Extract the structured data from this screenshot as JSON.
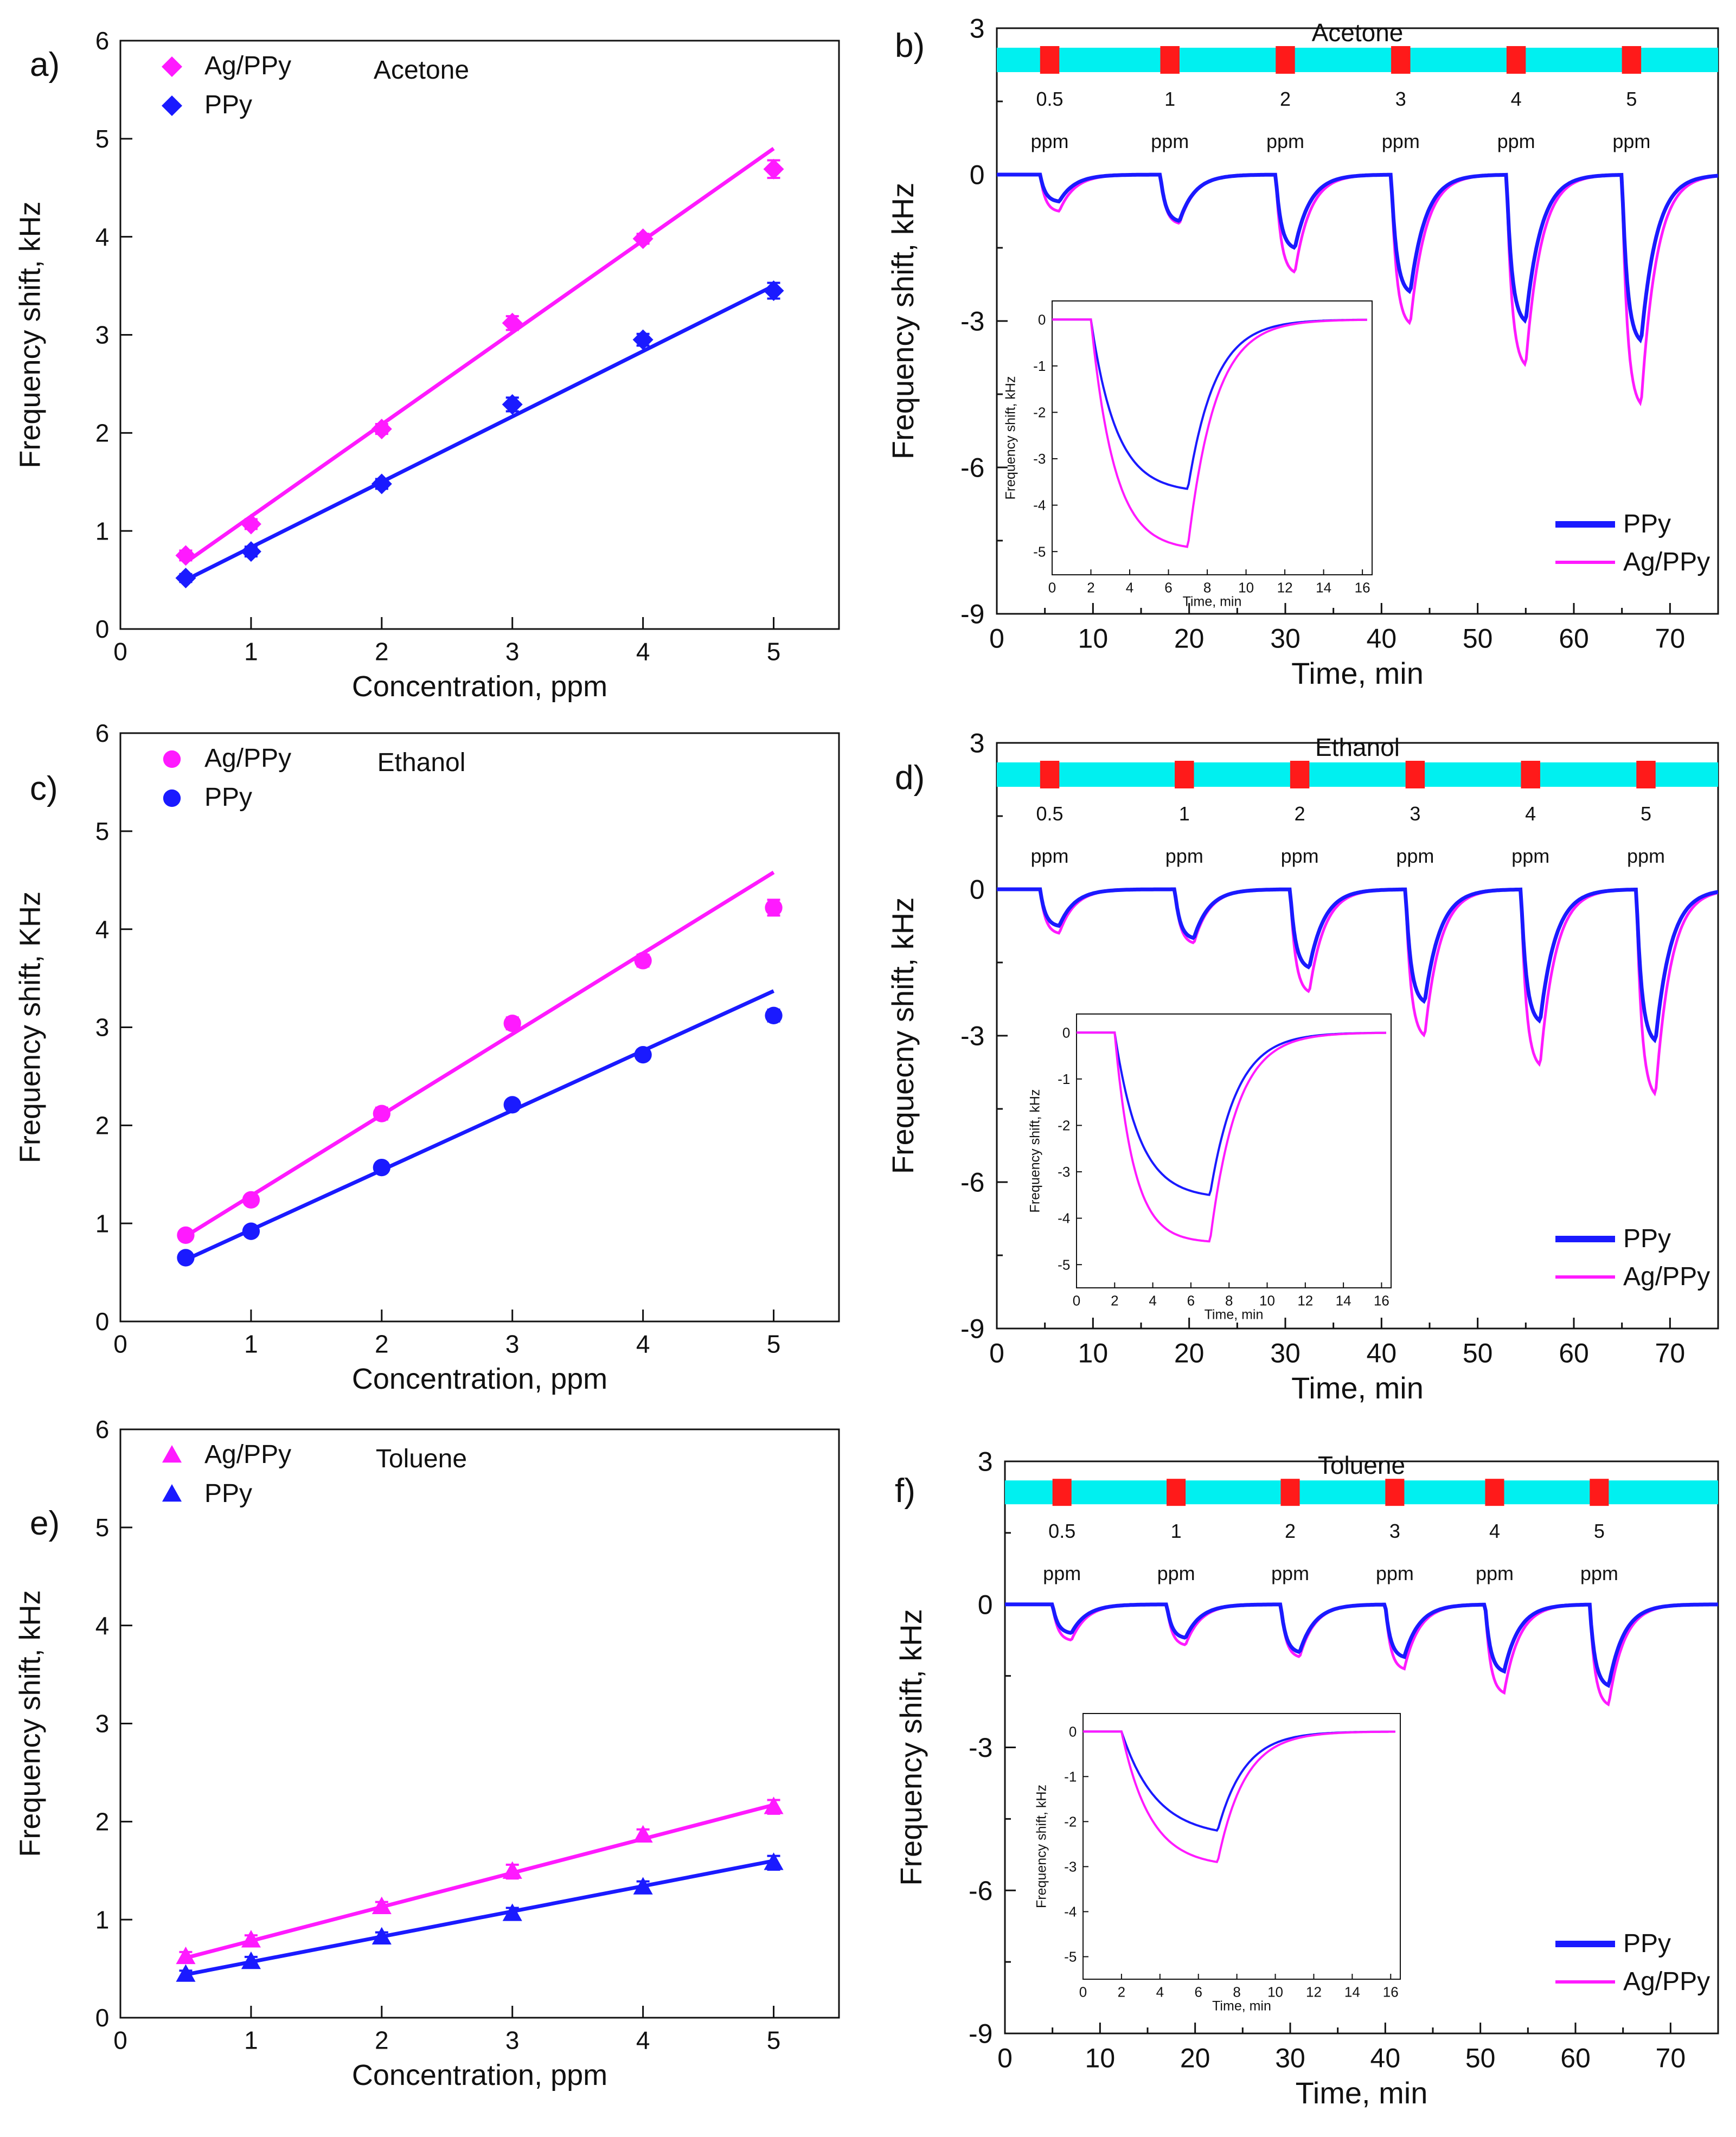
{
  "colors": {
    "agppy": "#ff1aff",
    "ppy": "#1a1aff",
    "bar": "#00f0f0",
    "pulse": "#ff1a1a",
    "axis": "#111111"
  },
  "chart_data": [
    {
      "panel": "a)",
      "type": "scatter",
      "title": "Acetone",
      "xlabel": "Concentration, ppm",
      "ylabel": "Frequency shift, kHz",
      "xlim": [
        0,
        5.5
      ],
      "ylim": [
        0,
        6
      ],
      "xticks": [
        0,
        1,
        2,
        3,
        4,
        5
      ],
      "yticks": [
        0,
        1,
        2,
        3,
        4,
        5,
        6
      ],
      "legend": "top-left",
      "marker": "diamond",
      "series": [
        {
          "name": "Ag/PPy",
          "color": "agppy",
          "x": [
            0.5,
            1,
            2,
            3,
            4,
            5
          ],
          "y": [
            0.75,
            1.07,
            2.04,
            3.12,
            3.98,
            4.69
          ],
          "err": [
            0.05,
            0.05,
            0.05,
            0.07,
            0.05,
            0.09
          ],
          "fit": [
            [
              0.5,
              0.68
            ],
            [
              5,
              4.9
            ]
          ]
        },
        {
          "name": "PPy",
          "color": "ppy",
          "x": [
            0.5,
            1,
            2,
            3,
            4,
            5
          ],
          "y": [
            0.52,
            0.79,
            1.48,
            2.29,
            2.95,
            3.45
          ],
          "err": [
            0.04,
            0.05,
            0.05,
            0.07,
            0.06,
            0.08
          ],
          "fit": [
            [
              0.5,
              0.5
            ],
            [
              5,
              3.5
            ]
          ]
        }
      ]
    },
    {
      "panel": "b)",
      "type": "line",
      "title": "Acetone",
      "xlabel": "Time, min",
      "ylabel": "Frequency shift, kHz",
      "xlim": [
        0,
        75
      ],
      "ylim": [
        -9,
        3
      ],
      "xticks": [
        0,
        10,
        20,
        30,
        40,
        50,
        60,
        70
      ],
      "yticks": [
        -9,
        -6,
        -3,
        0,
        3
      ],
      "legend": "bottom-right",
      "exposure_labels": [
        "0.5",
        "1",
        "2",
        "3",
        "4",
        "5"
      ],
      "exposure_unit": "ppm",
      "pulse_starts": [
        4.5,
        17,
        29,
        41,
        53,
        65
      ],
      "pulse_width": 2,
      "series": [
        {
          "name": "PPy",
          "color": "ppy",
          "depths": [
            0.55,
            0.95,
            1.5,
            2.4,
            3,
            3.4
          ]
        },
        {
          "name": "Ag/PPy",
          "color": "agppy",
          "depths": [
            0.75,
            1,
            2,
            3.05,
            3.9,
            4.7
          ]
        }
      ],
      "inset": {
        "xlabel": "Time, min",
        "ylabel": "Frequency shift, kHz",
        "xlim": [
          0,
          16.5
        ],
        "ylim": [
          -5.5,
          0.4
        ],
        "xticks": [
          0,
          2,
          4,
          6,
          8,
          10,
          12,
          14,
          16
        ],
        "yticks": [
          0,
          -1,
          -2,
          -3,
          -4,
          -5
        ],
        "series": [
          {
            "name": "PPy",
            "color": "ppy",
            "amp": 3.65,
            "tau": 1.3
          },
          {
            "name": "Ag/PPy",
            "color": "agppy",
            "amp": 4.9,
            "tau": 1.2
          }
        ]
      }
    },
    {
      "panel": "c)",
      "type": "scatter",
      "title": "Ethanol",
      "xlabel": "Concentration, ppm",
      "ylabel": "Frequency shift, KHz",
      "xlim": [
        0,
        5.5
      ],
      "ylim": [
        0,
        6
      ],
      "xticks": [
        0,
        1,
        2,
        3,
        4,
        5
      ],
      "yticks": [
        0,
        1,
        2,
        3,
        4,
        5,
        6
      ],
      "legend": "top-left",
      "marker": "circle",
      "series": [
        {
          "name": "Ag/PPy",
          "color": "agppy",
          "x": [
            0.5,
            1,
            2,
            3,
            4,
            5
          ],
          "y": [
            0.88,
            1.24,
            2.12,
            3.04,
            3.68,
            4.22
          ],
          "err": [
            0.04,
            0.05,
            0.06,
            0.06,
            0.06,
            0.08
          ],
          "fit": [
            [
              0.5,
              0.87
            ],
            [
              5,
              4.58
            ]
          ]
        },
        {
          "name": "PPy",
          "color": "ppy",
          "x": [
            0.5,
            1,
            2,
            3,
            4,
            5
          ],
          "y": [
            0.65,
            0.92,
            1.57,
            2.21,
            2.72,
            3.12
          ],
          "err": [
            0.04,
            0.05,
            0.05,
            0.05,
            0.05,
            0.06
          ],
          "fit": [
            [
              0.5,
              0.63
            ],
            [
              5,
              3.37
            ]
          ]
        }
      ]
    },
    {
      "panel": "d)",
      "type": "line",
      "title": "Ethanol",
      "xlabel": "Time, min",
      "ylabel": "Frequecny shift, kHz",
      "xlim": [
        0,
        75
      ],
      "ylim": [
        -9,
        3
      ],
      "xticks": [
        0,
        10,
        20,
        30,
        40,
        50,
        60,
        70
      ],
      "yticks": [
        -9,
        -6,
        -3,
        0,
        3
      ],
      "legend": "bottom-right",
      "exposure_labels": [
        "0.5",
        "1",
        "2",
        "3",
        "4",
        "5"
      ],
      "exposure_unit": "ppm",
      "pulse_starts": [
        4.5,
        18.5,
        30.5,
        42.5,
        54.5,
        66.5
      ],
      "pulse_width": 2,
      "series": [
        {
          "name": "PPy",
          "color": "ppy",
          "depths": [
            0.75,
            1,
            1.6,
            2.3,
            2.7,
            3.1
          ]
        },
        {
          "name": "Ag/PPy",
          "color": "agppy",
          "depths": [
            0.9,
            1.1,
            2.1,
            3,
            3.6,
            4.2
          ]
        }
      ],
      "inset": {
        "xlabel": "Time, min",
        "ylabel": "Frequency shift, kHz",
        "xlim": [
          0,
          16.5
        ],
        "ylim": [
          -5.5,
          0.4
        ],
        "xticks": [
          0,
          2,
          4,
          6,
          8,
          10,
          12,
          14,
          16
        ],
        "yticks": [
          0,
          -1,
          -2,
          -3,
          -4,
          -5
        ],
        "series": [
          {
            "name": "PPy",
            "color": "ppy",
            "amp": 3.5,
            "tau": 1.3
          },
          {
            "name": "Ag/PPy",
            "color": "agppy",
            "amp": 4.5,
            "tau": 1.0
          }
        ]
      }
    },
    {
      "panel": "e)",
      "type": "scatter",
      "title": "Toluene",
      "xlabel": "Concentration, ppm",
      "ylabel": "Frequency shift, kHz",
      "xlim": [
        0,
        5.5
      ],
      "ylim": [
        0,
        6
      ],
      "xticks": [
        0,
        1,
        2,
        3,
        4,
        5
      ],
      "yticks": [
        0,
        1,
        2,
        3,
        4,
        5,
        6
      ],
      "legend": "top-left",
      "marker": "triangle",
      "series": [
        {
          "name": "Ag/PPy",
          "color": "agppy",
          "x": [
            0.5,
            1,
            2,
            3,
            4,
            5
          ],
          "y": [
            0.62,
            0.79,
            1.13,
            1.49,
            1.86,
            2.15
          ],
          "err": [
            0.05,
            0.05,
            0.05,
            0.07,
            0.06,
            0.07
          ],
          "fit": [
            [
              0.5,
              0.61
            ],
            [
              5,
              2.17
            ]
          ]
        },
        {
          "name": "PPy",
          "color": "ppy",
          "x": [
            0.5,
            1,
            2,
            3,
            4,
            5
          ],
          "y": [
            0.44,
            0.57,
            0.82,
            1.06,
            1.33,
            1.58
          ],
          "err": [
            0.04,
            0.05,
            0.05,
            0.06,
            0.06,
            0.07
          ],
          "fit": [
            [
              0.5,
              0.44
            ],
            [
              5,
              1.6
            ]
          ]
        }
      ]
    },
    {
      "panel": "f)",
      "type": "line",
      "title": "Toluene",
      "xlabel": "Time, min",
      "ylabel": "Frequency shift, kHz",
      "xlim": [
        0,
        75
      ],
      "ylim": [
        -9,
        3
      ],
      "xticks": [
        0,
        10,
        20,
        30,
        40,
        50,
        60,
        70
      ],
      "yticks": [
        -9,
        -6,
        -3,
        0,
        3
      ],
      "legend": "bottom-right",
      "exposure_labels": [
        "0.5",
        "1",
        "2",
        "3",
        "4",
        "5"
      ],
      "exposure_unit": "ppm",
      "pulse_starts": [
        5,
        17,
        29,
        40,
        50.5,
        61.5
      ],
      "pulse_width": 2,
      "series": [
        {
          "name": "PPy",
          "color": "ppy",
          "depths": [
            0.6,
            0.7,
            1,
            1.1,
            1.4,
            1.7
          ]
        },
        {
          "name": "Ag/PPy",
          "color": "agppy",
          "depths": [
            0.75,
            0.85,
            1.1,
            1.35,
            1.85,
            2.1
          ]
        }
      ],
      "inset": {
        "xlabel": "Time, min",
        "ylabel": "Frequency shift, kHz",
        "xlim": [
          0,
          16.5
        ],
        "ylim": [
          -5.5,
          0.4
        ],
        "xticks": [
          0,
          2,
          4,
          6,
          8,
          10,
          12,
          14,
          16
        ],
        "yticks": [
          0,
          -1,
          -2,
          -3,
          -4,
          -5
        ],
        "series": [
          {
            "name": "PPy",
            "color": "ppy",
            "amp": 2.2,
            "tau": 1.8
          },
          {
            "name": "Ag/PPy",
            "color": "agppy",
            "amp": 2.9,
            "tau": 1.5
          }
        ]
      }
    }
  ]
}
